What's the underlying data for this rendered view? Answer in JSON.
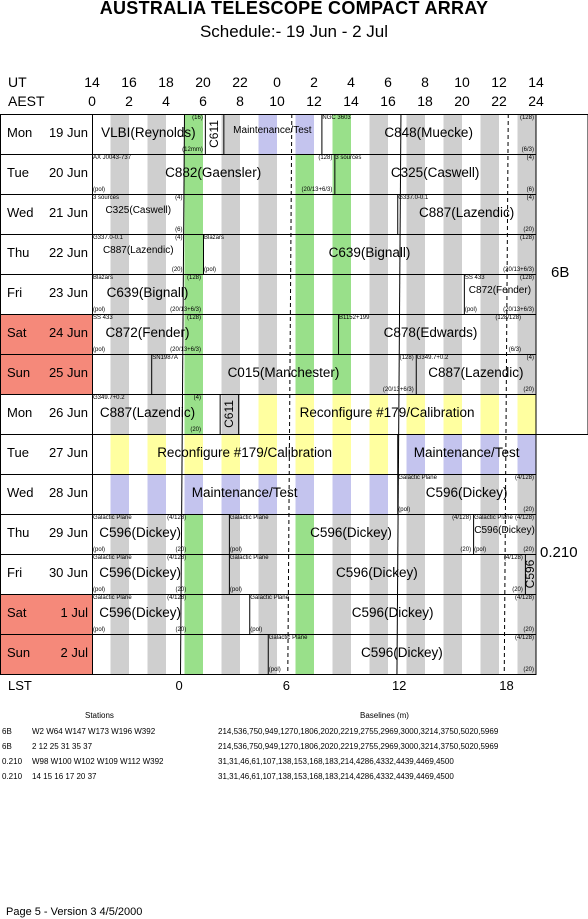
{
  "title": "AUSTRALIA TELESCOPE COMPACT ARRAY",
  "subtitle": "Schedule:- 19 Jun - 2  Jul",
  "axes": {
    "ut_label": "UT",
    "aest_label": "AEST",
    "lst_label": "LST",
    "ut_ticks": [
      "14",
      "16",
      "18",
      "20",
      "22",
      "0",
      "2",
      "4",
      "6",
      "8",
      "10",
      "12",
      "14"
    ],
    "aest_ticks": [
      "0",
      "2",
      "4",
      "6",
      "8",
      "10",
      "12",
      "14",
      "16",
      "18",
      "20",
      "22",
      "24"
    ],
    "lst_ticks": [
      "0",
      "6",
      "12",
      "18"
    ]
  },
  "days": [
    {
      "day": "Mon",
      "date": "19 Jun",
      "weekend": false
    },
    {
      "day": "Tue",
      "date": "20 Jun",
      "weekend": false
    },
    {
      "day": "Wed",
      "date": "21 Jun",
      "weekend": false
    },
    {
      "day": "Thu",
      "date": "22 Jun",
      "weekend": false
    },
    {
      "day": "Fri",
      "date": "23 Jun",
      "weekend": false
    },
    {
      "day": "Sat",
      "date": "24 Jun",
      "weekend": true
    },
    {
      "day": "Sun",
      "date": "25 Jun",
      "weekend": true
    },
    {
      "day": "Mon",
      "date": "26 Jun",
      "weekend": false
    },
    {
      "day": "Tue",
      "date": "27 Jun",
      "weekend": false
    },
    {
      "day": "Wed",
      "date": "28 Jun",
      "weekend": false
    },
    {
      "day": "Thu",
      "date": "29 Jun",
      "weekend": false
    },
    {
      "day": "Fri",
      "date": "30 Jun",
      "weekend": false
    },
    {
      "day": "Sat",
      "date": "1  Jul",
      "weekend": true
    },
    {
      "day": "Sun",
      "date": "2  Jul",
      "weekend": true
    }
  ],
  "blocks": [
    {
      "row": 0,
      "s": 0,
      "e": 6.1,
      "name": "VLBI(Reynolds)",
      "tr": "(16)",
      "br": "(12mm)"
    },
    {
      "row": 0,
      "s": 6.1,
      "e": 7.1,
      "name": "C611",
      "vertical": true
    },
    {
      "row": 0,
      "s": 7.1,
      "e": 12.4,
      "name": "Maintenance/Test",
      "small": true
    },
    {
      "row": 0,
      "s": 12.4,
      "e": 24,
      "name": "C848(Muecke)",
      "tl": "NGC 3603",
      "tr": "(128)",
      "br": "(6/3)"
    },
    {
      "row": 1,
      "s": 0,
      "e": 13.1,
      "name": "C882(Gaensler)",
      "tl": "AX J0043-737",
      "tr": "(128)",
      "bl": "(pol)",
      "br": "(20/13+6/3)"
    },
    {
      "row": 1,
      "s": 13.1,
      "e": 24,
      "name": "C325(Caswell)",
      "tl": "3 sources",
      "tr": "(4)",
      "br": "(6)"
    },
    {
      "row": 2,
      "s": 0,
      "e": 5,
      "name": "C325(Caswell)",
      "tl": "3 sources",
      "tr": "(4)",
      "br": "(6)",
      "small": true
    },
    {
      "row": 2,
      "s": 16.5,
      "e": 24,
      "name": "C887(Lazendic)",
      "tl": "G337.0-0.1",
      "tr": "(4)",
      "br": "(20)"
    },
    {
      "row": 3,
      "s": 0,
      "e": 5,
      "name": "C887(Lazendic)",
      "tl": "G337.0-0.1",
      "tr": "(4)",
      "br": "(20)",
      "small": true
    },
    {
      "row": 3,
      "s": 6,
      "e": 24,
      "name": "C639(Bignall)",
      "tl": "Blazars",
      "tr": "(128)",
      "bl": "(pol)",
      "br": "(20/13+6/3)"
    },
    {
      "row": 4,
      "s": 0,
      "e": 6,
      "name": "C639(Bignall)",
      "tl": "Blazars",
      "tr": "(128)",
      "bl": "(pol)",
      "br": "(20/13+6/3)"
    },
    {
      "row": 4,
      "s": 20.1,
      "e": 24,
      "name": "C872(Fender)",
      "tl": "SS 433",
      "tr": "(128)",
      "bl": "(pol)",
      "br": "(20/13+6/3)",
      "small": true
    },
    {
      "row": 5,
      "s": 0,
      "e": 6,
      "name": "C872(Fender)",
      "tl": "SS 433",
      "tr": "(128)",
      "bl": "(pol)",
      "br": "(20/13+6/3)"
    },
    {
      "row": 5,
      "s": 13.3,
      "e": 23.3,
      "name": "C878(Edwards)",
      "tl": "B1152+199",
      "tr": "(128/128)",
      "br": "(6/3)"
    },
    {
      "row": 6,
      "s": 3.2,
      "e": 17.5,
      "name": "C015(Manchester)",
      "tl": "SN1987A",
      "tr": "(128)",
      "br": "(20/13+6/3)"
    },
    {
      "row": 6,
      "s": 17.5,
      "e": 24,
      "name": "C887(Lazendic)",
      "tl": "G349.7+0.2",
      "tr": "(4)",
      "br": "(20)"
    },
    {
      "row": 7,
      "s": 0,
      "e": 6,
      "name": "C887(Lazendic)",
      "tl": "G349.7+0.2",
      "tr": "(4)",
      "br": "(20)"
    },
    {
      "row": 7,
      "s": 6.9,
      "e": 7.9,
      "name": "C611",
      "vertical": true
    },
    {
      "row": 7,
      "s": 7.9,
      "e": 24,
      "name": "Reconfigure #179/Calibration"
    },
    {
      "row": 8,
      "s": 0,
      "e": 16.5,
      "name": "Reconfigure #179/Calibration"
    },
    {
      "row": 8,
      "s": 16.5,
      "e": 24,
      "name": "Maintenance/Test"
    },
    {
      "row": 9,
      "s": 0,
      "e": 16.5,
      "name": "Maintenance/Test"
    },
    {
      "row": 9,
      "s": 16.5,
      "e": 24,
      "name": "C596(Dickey)",
      "tl": "Galactic Plane",
      "tr": "(4/128)",
      "bl": "(pol)",
      "br": "(20)"
    },
    {
      "row": 10,
      "s": 0,
      "e": 5.2,
      "name": "C596(Dickey)",
      "tl": "Galactic Plane",
      "tr": "(4/128)",
      "bl": "(pol)",
      "br": "(20)"
    },
    {
      "row": 10,
      "s": 7.4,
      "e": 20.6,
      "name": "C596(Dickey)",
      "tl": "Galactic Plane",
      "tr": "(4/128)",
      "bl": "(pol)",
      "br": "(20)"
    },
    {
      "row": 10,
      "s": 20.6,
      "e": 24,
      "name": "C596(Dickey)",
      "tl": "Galactic Plane",
      "tr": "(4/128)",
      "bl": "(pol)",
      "br": "(20)",
      "small": true
    },
    {
      "row": 11,
      "s": 0,
      "e": 5.2,
      "name": "C596(Dickey)",
      "tl": "Galactic Plane",
      "tr": "(4/128)",
      "bl": "(pol)",
      "br": "(20)"
    },
    {
      "row": 11,
      "s": 7.4,
      "e": 23.4,
      "name": "C596(Dickey)",
      "tl": "Galactic Plane",
      "tr": "(4/128)",
      "bl": "(pol)",
      "br": "(20)"
    },
    {
      "row": 11,
      "s": 23.4,
      "e": 24,
      "name": "C596",
      "vertical": true
    },
    {
      "row": 12,
      "s": 0,
      "e": 5.2,
      "name": "C596(Dickey)",
      "tl": "Galactic Plane",
      "tr": "(4/128)",
      "bl": "(pol)",
      "br": "(20)"
    },
    {
      "row": 12,
      "s": 8.5,
      "e": 24,
      "name": "C596(Dickey)",
      "tl": "Galactic Plane",
      "tr": "(4/128)",
      "bl": "(pol)",
      "br": "(20)"
    },
    {
      "row": 13,
      "s": 9.5,
      "e": 24,
      "name": "C596(Dickey)",
      "tl": "Galactic Plane",
      "tr": "(4/128)",
      "bl": "(pol)",
      "br": "(20)"
    }
  ],
  "configs": [
    {
      "label": "6B",
      "from_row": 0,
      "to_row": 7
    },
    {
      "label": "0.210",
      "from_row": 8,
      "to_row": 13
    }
  ],
  "colors": {
    "green": "#99e08a",
    "blue": "#c4c4ee",
    "yellow": "#ffffa0",
    "grey": "#cfcfcf",
    "weekend": "#f5897a"
  },
  "footer": {
    "stations_header": "Stations",
    "baselines_header": "Baselines (m)",
    "rows": [
      {
        "config": "6B",
        "stations": "W2 W64 W147 W173 W196 W392",
        "baselines": "214,536,750,949,1270,1806,2020,2219,2755,2969,3000,3214,3750,5020,5969"
      },
      {
        "config": "6B",
        "stations": "2 12 25 31 35 37",
        "baselines": "214,536,750,949,1270,1806,2020,2219,2755,2969,3000,3214,3750,5020,5969"
      },
      {
        "config": "0.210",
        "stations": "W98 W100 W102 W109 W112 W392",
        "baselines": "31,31,46,61,107,138,153,168,183,214,4286,4332,4439,4469,4500"
      },
      {
        "config": "0.210",
        "stations": "14 15 16 17 20 37",
        "baselines": "31,31,46,61,107,138,153,168,183,214,4286,4332,4439,4469,4500"
      }
    ],
    "page_info": "Page 5 - Version 3  4/5/2000"
  }
}
